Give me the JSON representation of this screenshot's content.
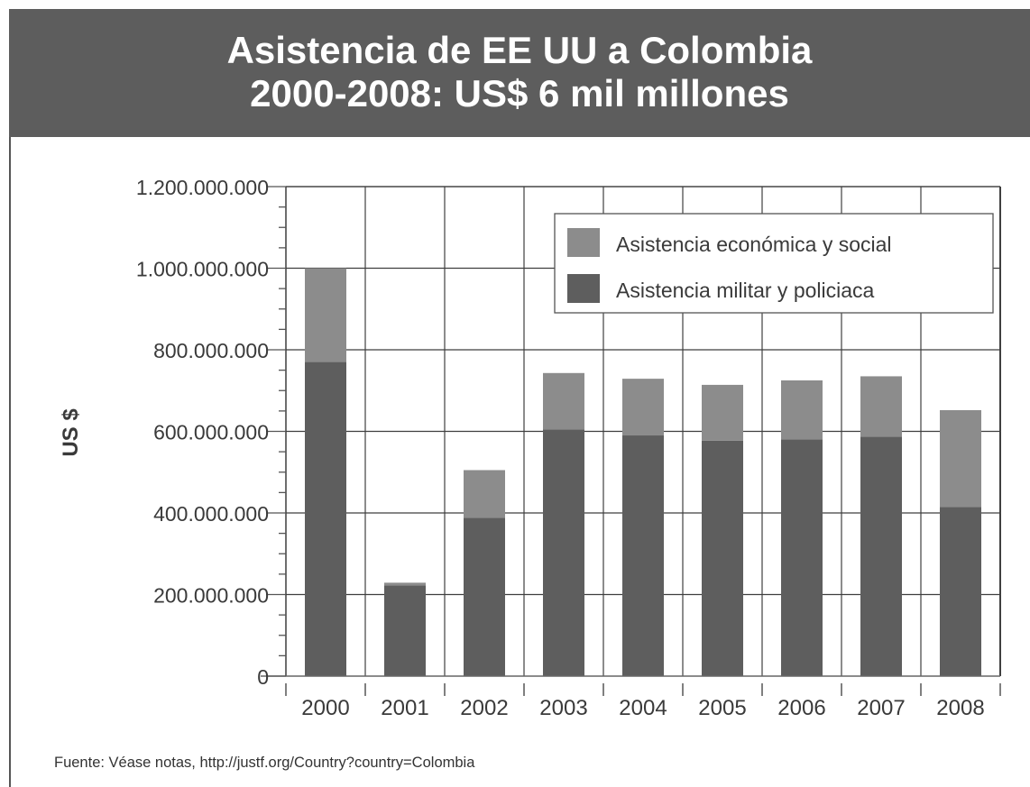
{
  "header": {
    "title_line1": "Asistencia de EE UU a Colombia",
    "title_line2": "2000-2008: US$ 6 mil millones"
  },
  "source": "Fuente: Véase notas, http://justf.org/Country?country=Colombia",
  "colors": {
    "header_bg": "#5d5d5d",
    "economic": "#8c8c8c",
    "military": "#5e5e5e",
    "grid": "#3f3f3f"
  },
  "chart_data": {
    "type": "bar",
    "stacked": true,
    "ylabel": "US $",
    "ylim": [
      0,
      1200000000
    ],
    "yticks": [
      0,
      200000000,
      400000000,
      600000000,
      800000000,
      1000000000,
      1200000000
    ],
    "ytick_labels": [
      "0",
      "200.000.000",
      "400.000.000",
      "600.000.000",
      "800.000.000",
      "1.000.000.000",
      "1.200.000.000"
    ],
    "categories": [
      "2000",
      "2001",
      "2002",
      "2003",
      "2004",
      "2005",
      "2006",
      "2007",
      "2008"
    ],
    "grid": true,
    "legend_position": "top-right",
    "series": [
      {
        "name": "Asistencia militar y policiaca",
        "color": "#5e5e5e",
        "values": [
          770000000,
          222000000,
          388000000,
          605000000,
          590000000,
          577000000,
          580000000,
          587000000,
          415000000
        ]
      },
      {
        "name": "Asistencia económica y social",
        "color": "#8c8c8c",
        "values": [
          230000000,
          7000000,
          117000000,
          138000000,
          139000000,
          137000000,
          145000000,
          148000000,
          237000000
        ]
      }
    ],
    "legend": [
      "Asistencia económica y social",
      "Asistencia militar y policiaca"
    ]
  }
}
